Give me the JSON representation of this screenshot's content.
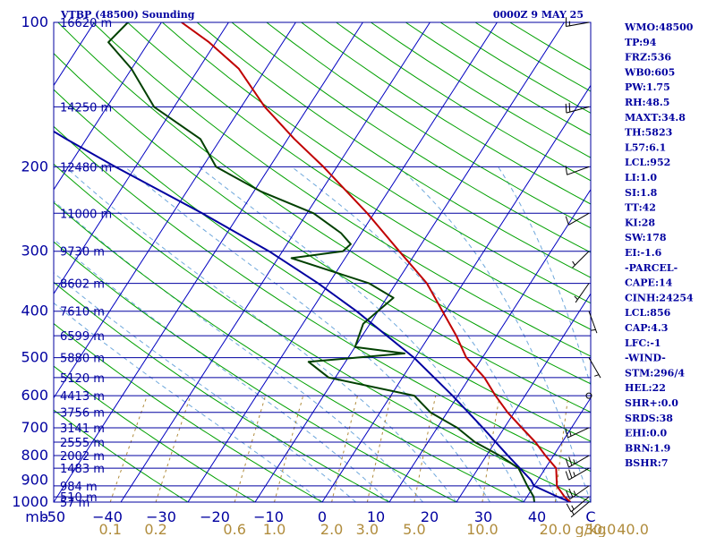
{
  "header": {
    "station": "VTBP (48500) Sounding",
    "time": "0000Z  9 MAY 25"
  },
  "colors": {
    "frame": "#0000a0",
    "isobar": "#0000a0",
    "isotherm": "#0000c0",
    "dry_adiabat": "#00a000",
    "moist_adiabat": "#6fa8dc",
    "mixing_ratio": "#b08c3c",
    "temperature": "#c00000",
    "dewpoint": "#004000",
    "parcel": "#0000a0",
    "wind": "#000000"
  },
  "chart_data": {
    "type": "line",
    "title": "VTBP (48500) Sounding",
    "subtitle": "0000Z  9 MAY 25",
    "x_axis": {
      "unit": "°C",
      "range": [
        -50,
        30
      ],
      "tick_labels": [
        "-50",
        "−40",
        "−30",
        "−20",
        "−10",
        "0",
        "10",
        "20",
        "30",
        "40",
        "C"
      ]
    },
    "y_axis": {
      "unit": "mb",
      "scale": "log",
      "range": [
        1000,
        100
      ],
      "tick_labels": [
        "mb",
        "1000",
        "900",
        "800",
        "700",
        "600",
        "500",
        "400",
        "300",
        "200",
        "100"
      ]
    },
    "mixing_ratio_axis": {
      "unit": "g/kg",
      "tick_labels": [
        "0.1",
        "0.2",
        "0.6",
        "1.0",
        "2.0",
        "3.0",
        "5.0",
        "10.0",
        "20.0",
        "30.0",
        "40.0",
        "g/kg"
      ]
    },
    "height_labels": [
      {
        "p": 1000,
        "label": "57 m"
      },
      {
        "p": 975,
        "label": "510 m"
      },
      {
        "p": 925,
        "label": "984 m"
      },
      {
        "p": 850,
        "label": "1483 m"
      },
      {
        "p": 800,
        "label": "2002 m"
      },
      {
        "p": 750,
        "label": "2555 m"
      },
      {
        "p": 700,
        "label": "3141 m"
      },
      {
        "p": 650,
        "label": "3756 m"
      },
      {
        "p": 600,
        "label": "4413 m"
      },
      {
        "p": 550,
        "label": "5120 m"
      },
      {
        "p": 500,
        "label": "5880 m"
      },
      {
        "p": 450,
        "label": "6599 m"
      },
      {
        "p": 400,
        "label": "7610 m"
      },
      {
        "p": 350,
        "label": "8602 m"
      },
      {
        "p": 300,
        "label": "9730 m"
      },
      {
        "p": 250,
        "label": "11000 m"
      },
      {
        "p": 200,
        "label": "12480 m"
      },
      {
        "p": 150,
        "label": "14250 m"
      },
      {
        "p": 100,
        "label": "16620 m"
      }
    ],
    "series": [
      {
        "key": "temperature",
        "points": [
          {
            "p": 1000,
            "t": 27.0
          },
          {
            "p": 975,
            "t": 25.6
          },
          {
            "p": 925,
            "t": 23.4
          },
          {
            "p": 850,
            "t": 21.6
          },
          {
            "p": 800,
            "t": 18.8
          },
          {
            "p": 750,
            "t": 16.0
          },
          {
            "p": 700,
            "t": 12.6
          },
          {
            "p": 650,
            "t": 9.0
          },
          {
            "p": 600,
            "t": 5.6
          },
          {
            "p": 550,
            "t": 2.2
          },
          {
            "p": 500,
            "t": -2.4
          },
          {
            "p": 450,
            "t": -6.0
          },
          {
            "p": 400,
            "t": -10.4
          },
          {
            "p": 350,
            "t": -15.4
          },
          {
            "p": 300,
            "t": -22.6
          },
          {
            "p": 250,
            "t": -31.0
          },
          {
            "p": 200,
            "t": -42.0
          },
          {
            "p": 175,
            "t": -49.0
          },
          {
            "p": 150,
            "t": -56.5
          },
          {
            "p": 125,
            "t": -64.0
          },
          {
            "p": 110,
            "t": -71.0
          },
          {
            "p": 100,
            "t": -77.0
          }
        ]
      },
      {
        "key": "dewpoint",
        "points": [
          {
            "p": 1000,
            "t": 21.6
          },
          {
            "p": 975,
            "t": 21.0
          },
          {
            "p": 925,
            "t": 19.0
          },
          {
            "p": 850,
            "t": 16.0
          },
          {
            "p": 800,
            "t": 12.0
          },
          {
            "p": 750,
            "t": 7.0
          },
          {
            "p": 700,
            "t": 3.0
          },
          {
            "p": 650,
            "t": -2.5
          },
          {
            "p": 600,
            "t": -6.5
          },
          {
            "p": 550,
            "t": -21.0
          },
          {
            "p": 510,
            "t": -25.5
          },
          {
            "p": 490,
            "t": -12.0
          },
          {
            "p": 475,
            "t": -20.0
          },
          {
            "p": 425,
            "t": -21.0
          },
          {
            "p": 375,
            "t": -19.0
          },
          {
            "p": 350,
            "t": -24.0
          },
          {
            "p": 310,
            "t": -38.0
          },
          {
            "p": 300,
            "t": -31.0
          },
          {
            "p": 290,
            "t": -30.5
          },
          {
            "p": 275,
            "t": -33.0
          },
          {
            "p": 250,
            "t": -39.0
          },
          {
            "p": 225,
            "t": -49.0
          },
          {
            "p": 200,
            "t": -58.0
          },
          {
            "p": 175,
            "t": -63.0
          },
          {
            "p": 150,
            "t": -73.0
          },
          {
            "p": 125,
            "t": -80.0
          },
          {
            "p": 110,
            "t": -86.0
          },
          {
            "p": 100,
            "t": -85.0
          }
        ]
      },
      {
        "key": "parcel",
        "points": [
          {
            "p": 1000,
            "t": 27.0
          },
          {
            "p": 975,
            "t": 24.6
          },
          {
            "p": 925,
            "t": 20.0
          },
          {
            "p": 900,
            "t": 19.0
          },
          {
            "p": 850,
            "t": 16.2
          },
          {
            "p": 800,
            "t": 13.2
          },
          {
            "p": 700,
            "t": 6.8
          },
          {
            "p": 600,
            "t": -0.8
          },
          {
            "p": 500,
            "t": -10.2
          },
          {
            "p": 400,
            "t": -23.2
          },
          {
            "p": 350,
            "t": -31.6
          },
          {
            "p": 300,
            "t": -42.0
          },
          {
            "p": 250,
            "t": -55.6
          },
          {
            "p": 200,
            "t": -73.0
          },
          {
            "p": 175,
            "t": -83.0
          },
          {
            "p": 150,
            "t": -94.0
          },
          {
            "p": 125,
            "t": -106.5
          },
          {
            "p": 100,
            "t": -121.0
          }
        ]
      }
    ],
    "wind_barbs": [
      {
        "p": 100,
        "dir": 260,
        "kt": 15
      },
      {
        "p": 150,
        "dir": 255,
        "kt": 20
      },
      {
        "p": 200,
        "dir": 250,
        "kt": 10
      },
      {
        "p": 250,
        "dir": 240,
        "kt": 10
      },
      {
        "p": 300,
        "dir": 225,
        "kt": 5
      },
      {
        "p": 350,
        "dir": 215,
        "kt": 5
      },
      {
        "p": 400,
        "dir": 160,
        "kt": 5
      },
      {
        "p": 500,
        "dir": 150,
        "kt": 5
      },
      {
        "p": 600,
        "dir": 90,
        "kt": 0
      },
      {
        "p": 700,
        "dir": 245,
        "kt": 15
      },
      {
        "p": 800,
        "dir": 240,
        "kt": 25
      },
      {
        "p": 850,
        "dir": 240,
        "kt": 25
      },
      {
        "p": 925,
        "dir": 235,
        "kt": 25
      },
      {
        "p": 975,
        "dir": 230,
        "kt": 15
      },
      {
        "p": 1000,
        "dir": 230,
        "kt": 5
      }
    ],
    "indices": [
      "WMO:48500",
      "TP:94",
      "FRZ:536",
      "WB0:605",
      "PW:1.75",
      "RH:48.5",
      "MAXT:34.8",
      "TH:5823",
      "L57:6.1",
      "LCL:952",
      "LI:1.0",
      "SI:1.8",
      "TT:42",
      "KI:28",
      "SW:178",
      "EI:-1.6",
      "-PARCEL-",
      "CAPE:14",
      "CINH:24254",
      "LCL:856",
      "CAP:4.3",
      "LFC:-1",
      "-WIND-",
      "STM:296/4",
      "HEL:22",
      "SHR+:0.0",
      "SRDS:38",
      "EHI:0.0",
      "BRN:1.9",
      "BSHR:7"
    ]
  }
}
